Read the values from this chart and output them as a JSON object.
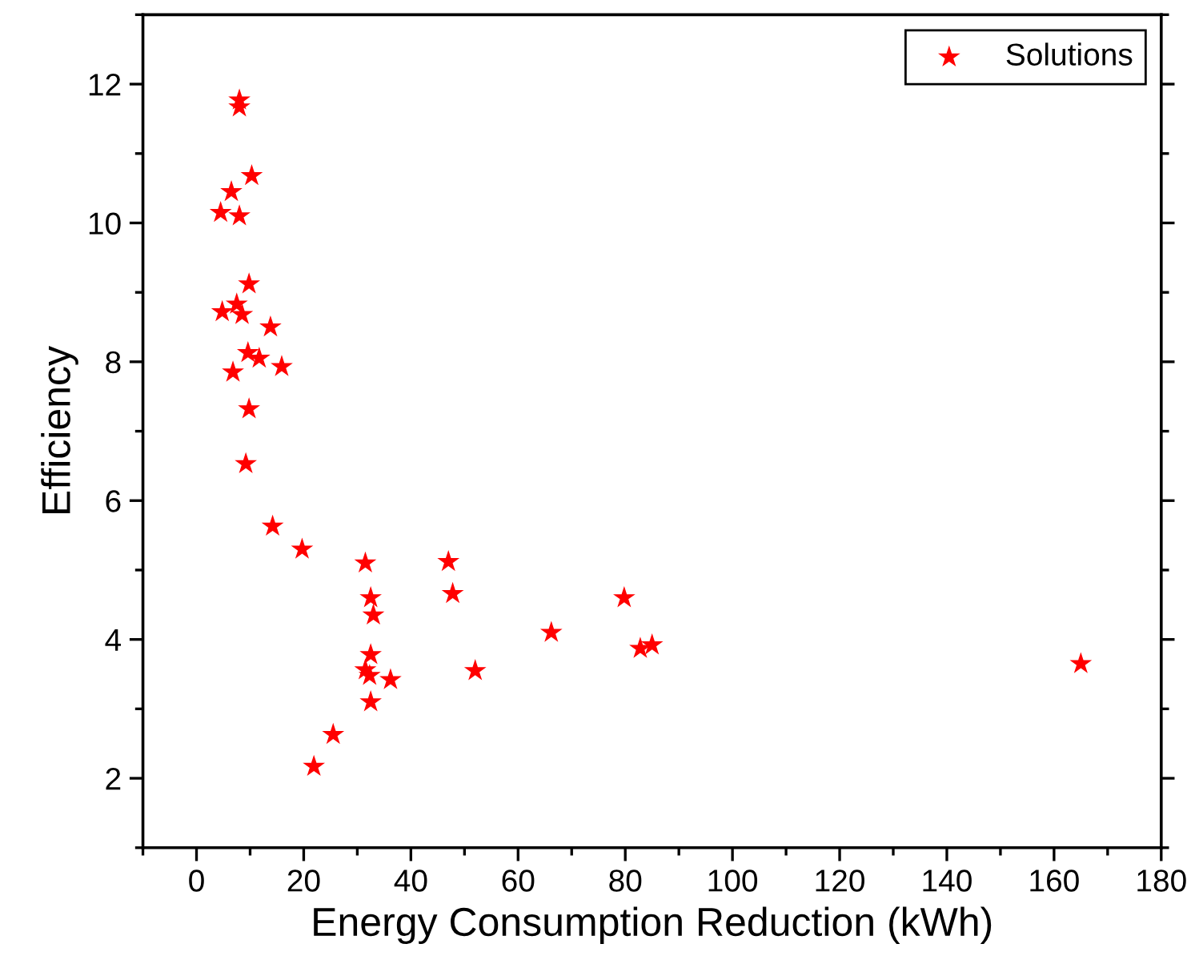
{
  "chart_data": {
    "type": "scatter",
    "xlabel": "Energy Consumption Reduction (kWh)",
    "ylabel": "Efficiency",
    "xlim": [
      -10,
      180
    ],
    "xticks": [
      0,
      20,
      40,
      60,
      80,
      100,
      120,
      140,
      160,
      180
    ],
    "ylim": [
      1,
      13
    ],
    "yticks": [
      2,
      4,
      6,
      8,
      10,
      12
    ],
    "grid": false,
    "legend": "top right",
    "marker": "star",
    "series": [
      {
        "name": "Solutions",
        "color": "#ff0000",
        "x": [
          8,
          8,
          10.3,
          6.5,
          4.5,
          8,
          9.8,
          7.5,
          4.8,
          8.5,
          13.8,
          9.6,
          11.7,
          15.9,
          6.8,
          9.8,
          9.2,
          14.2,
          19.7,
          31.5,
          47,
          32.5,
          47.8,
          33,
          79.8,
          66.2,
          82.8,
          85,
          32.5,
          31.5,
          32.3,
          36.2,
          52,
          32.5,
          25.5,
          21.9,
          165
        ],
        "values": [
          11.77,
          11.67,
          10.68,
          10.45,
          10.15,
          10.1,
          9.12,
          8.83,
          8.72,
          8.68,
          8.5,
          8.13,
          8.05,
          7.93,
          7.85,
          7.32,
          6.53,
          5.63,
          5.3,
          5.1,
          5.12,
          4.6,
          4.66,
          4.35,
          4.6,
          4.1,
          3.87,
          3.92,
          3.78,
          3.56,
          3.48,
          3.42,
          3.55,
          3.1,
          2.63,
          2.17,
          3.65
        ]
      }
    ]
  }
}
